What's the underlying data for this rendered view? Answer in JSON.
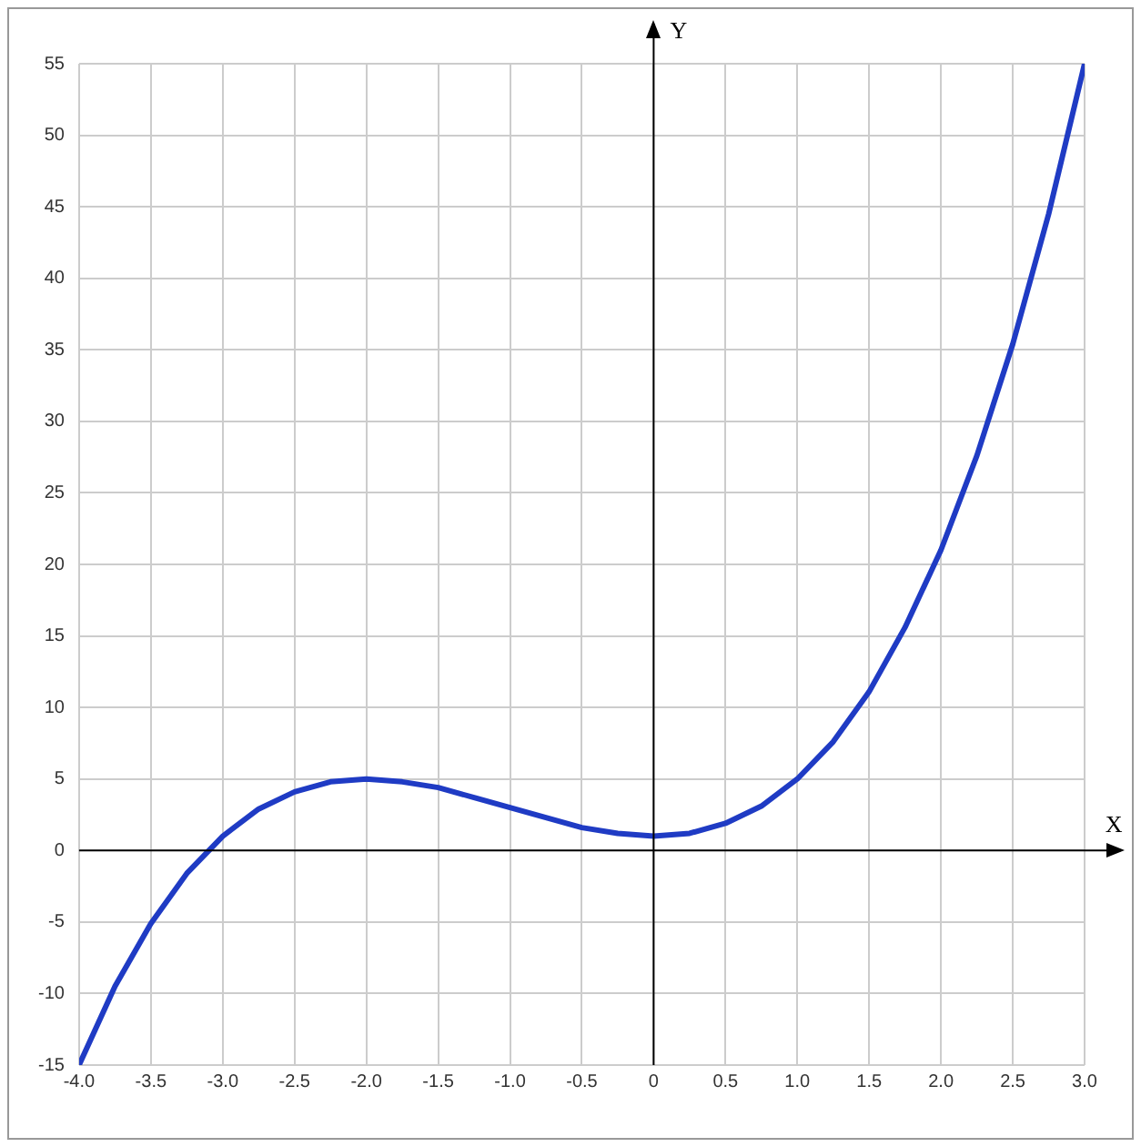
{
  "chart_data": {
    "type": "line",
    "xlabel": "X",
    "ylabel": "Y",
    "x": [
      -4,
      -3.75,
      -3.5,
      -3.25,
      -3,
      -2.75,
      -2.5,
      -2.25,
      -2,
      -1.75,
      -1.5,
      -1.25,
      -1,
      -0.75,
      -0.5,
      -0.25,
      0,
      0.25,
      0.5,
      0.75,
      1,
      1.25,
      1.5,
      1.75,
      2,
      2.25,
      2.5,
      2.75,
      3
    ],
    "series": [
      {
        "color": "#1f3bc4",
        "values": [
          -15,
          -9.5,
          -5.1,
          -1.6,
          1,
          2.9,
          4.1,
          4.8,
          5,
          4.8,
          4.4,
          3.7,
          3,
          2.3,
          1.6,
          1.2,
          1,
          1.2,
          1.9,
          3.1,
          5,
          7.6,
          11.1,
          15.6,
          21,
          27.6,
          35.4,
          44.5,
          55
        ]
      }
    ],
    "xlim": [
      -4,
      3
    ],
    "xticks": [
      {
        "value": -4,
        "label": "-4.0"
      },
      {
        "value": -3.5,
        "label": "-3.5"
      },
      {
        "value": -3,
        "label": "-3.0"
      },
      {
        "value": -2.5,
        "label": "-2.5"
      },
      {
        "value": -2,
        "label": "-2.0"
      },
      {
        "value": -1.5,
        "label": "-1.5"
      },
      {
        "value": -1,
        "label": "-1.0"
      },
      {
        "value": -0.5,
        "label": "-0.5"
      },
      0,
      0.5,
      {
        "value": 1,
        "label": "1.0"
      },
      1.5,
      {
        "value": 2,
        "label": "2.0"
      },
      2.5,
      {
        "value": 3,
        "label": "3.0"
      }
    ],
    "ylim": [
      -15,
      55
    ],
    "yticks": [
      -15,
      -10,
      -5,
      0,
      5,
      10,
      15,
      20,
      25,
      30,
      35,
      40,
      45,
      50,
      55
    ],
    "grid": true,
    "legend": false,
    "marker": "none",
    "line_style": "solid"
  }
}
